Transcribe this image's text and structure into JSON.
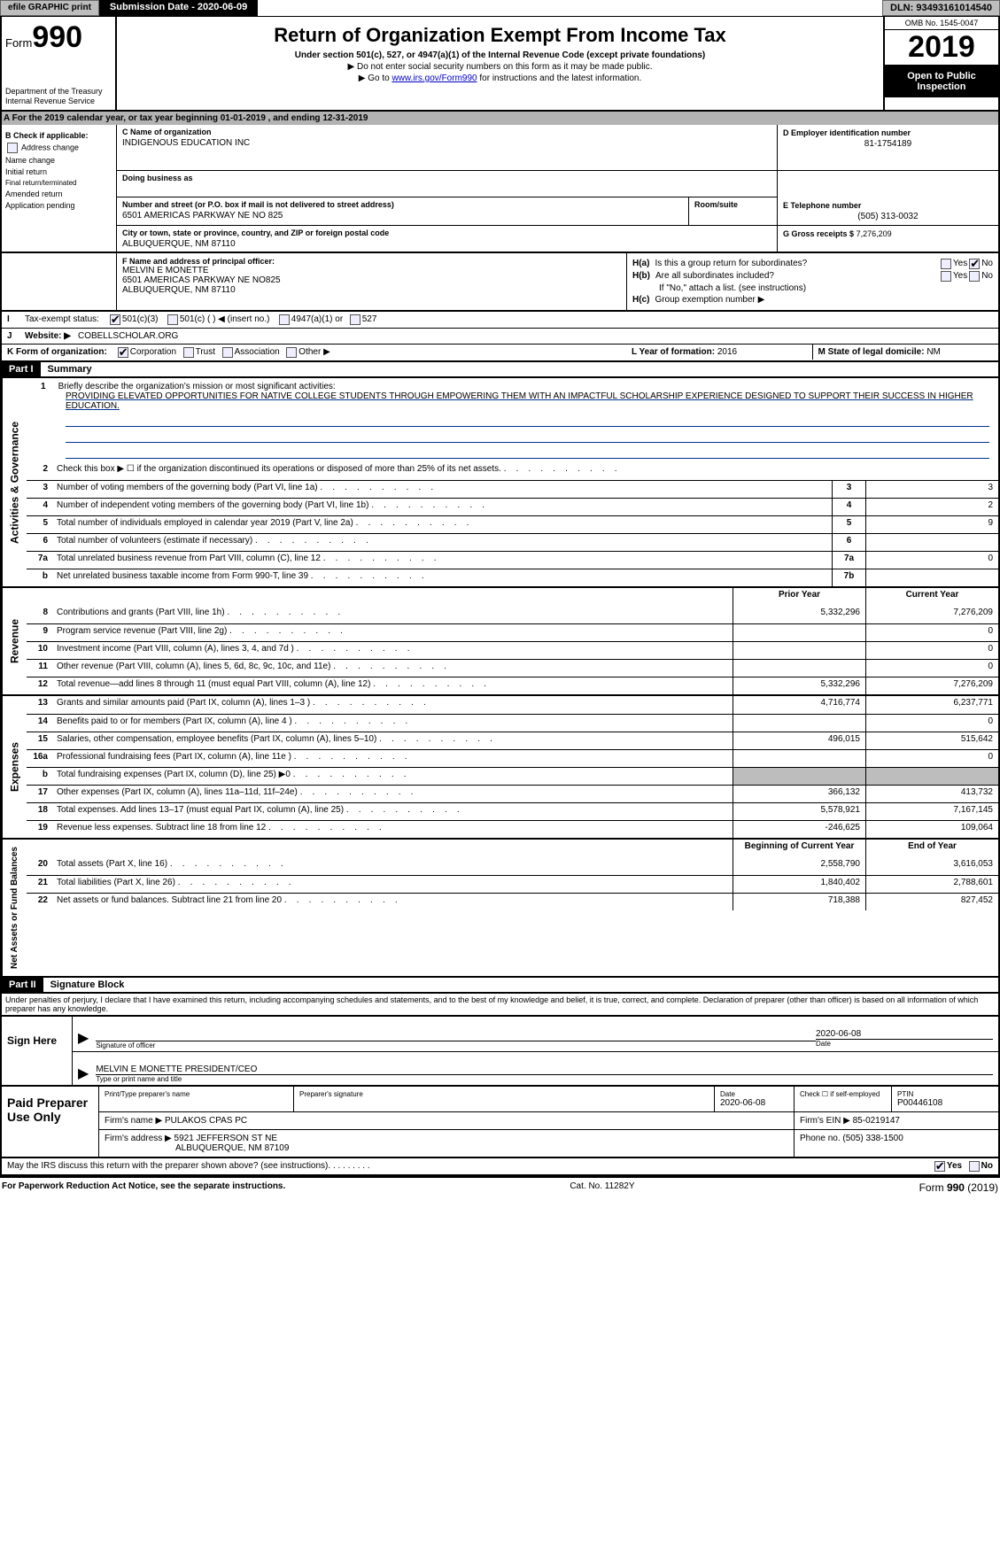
{
  "topbar": {
    "efile": "efile GRAPHIC print",
    "submission": "Submission Date - 2020-06-09",
    "dln": "DLN: 93493161014540"
  },
  "header": {
    "form_prefix": "Form",
    "form_number": "990",
    "department": "Department of the Treasury",
    "irs": "Internal Revenue Service",
    "title": "Return of Organization Exempt From Income Tax",
    "subtitle": "Under section 501(c), 527, or 4947(a)(1) of the Internal Revenue Code (except private foundations)",
    "note1": "▶ Do not enter social security numbers on this form as it may be made public.",
    "note2_pre": "▶ Go to ",
    "note2_link": "www.irs.gov/Form990",
    "note2_post": " for instructions and the latest information.",
    "omb": "OMB No. 1545-0047",
    "year": "2019",
    "otp": "Open to Public Inspection"
  },
  "row_a": "A   For the 2019 calendar year, or tax year beginning 01-01-2019       , and ending 12-31-2019",
  "block_b": {
    "title": "B Check if applicable:",
    "items": [
      "Address change",
      "Name change",
      "Initial return",
      "Final return/terminated",
      "Amended return",
      "Application pending"
    ]
  },
  "block_c": {
    "name_label": "C Name of organization",
    "name": "INDIGENOUS EDUCATION INC",
    "dba_label": "Doing business as",
    "dba": "",
    "street_label": "Number and street (or P.O. box if mail is not delivered to street address)",
    "street": "6501 AMERICAS PARKWAY NE NO 825",
    "room_label": "Room/suite",
    "room": "",
    "city_label": "City or town, state or province, country, and ZIP or foreign postal code",
    "city": "ALBUQUERQUE, NM  87110"
  },
  "block_d": {
    "label": "D Employer identification number",
    "value": "81-1754189"
  },
  "block_e": {
    "label": "E Telephone number",
    "value": "(505) 313-0032"
  },
  "block_g": {
    "label": "G Gross receipts $",
    "value": "7,276,209"
  },
  "block_f": {
    "label": "F  Name and address of principal officer:",
    "name": "MELVIN E MONETTE",
    "addr1": "6501 AMERICAS PARKWAY NE NO825",
    "addr2": "ALBUQUERQUE, NM  87110"
  },
  "block_h": {
    "a": "Is this a group return for subordinates?",
    "b": "Are all subordinates included?",
    "b_note": "If \"No,\" attach a list. (see instructions)",
    "c": "Group exemption number ▶"
  },
  "row_i": {
    "label": "Tax-exempt status:",
    "opts": [
      "501(c)(3)",
      "501(c) (  ) ◀ (insert no.)",
      "4947(a)(1) or",
      "527"
    ]
  },
  "row_j": {
    "label": "Website: ▶",
    "value": "COBELLSCHOLAR.ORG"
  },
  "row_k": {
    "label": "K Form of organization:",
    "opts": [
      "Corporation",
      "Trust",
      "Association",
      "Other ▶"
    ]
  },
  "row_l": {
    "label": "L Year of formation:",
    "value": "2016"
  },
  "row_m": {
    "label": "M State of legal domicile:",
    "value": "NM"
  },
  "part1": {
    "tag": "Part I",
    "title": "Summary"
  },
  "mission": {
    "num": "1",
    "label": "Briefly describe the organization's mission or most significant activities:",
    "text": "PROVIDING ELEVATED OPPORTUNITIES FOR NATIVE COLLEGE STUDENTS THROUGH EMPOWERING THEM WITH AN IMPACTFUL SCHOLARSHIP EXPERIENCE DESIGNED TO SUPPORT THEIR SUCCESS IN HIGHER EDUCATION."
  },
  "governance_rows": [
    {
      "n": "2",
      "desc": "Check this box ▶ ☐  if the organization discontinued its operations or disposed of more than 25% of its net assets."
    },
    {
      "n": "3",
      "desc": "Number of voting members of the governing body (Part VI, line 1a)",
      "box": "3",
      "val": "3"
    },
    {
      "n": "4",
      "desc": "Number of independent voting members of the governing body (Part VI, line 1b)",
      "box": "4",
      "val": "2"
    },
    {
      "n": "5",
      "desc": "Total number of individuals employed in calendar year 2019 (Part V, line 2a)",
      "box": "5",
      "val": "9"
    },
    {
      "n": "6",
      "desc": "Total number of volunteers (estimate if necessary)",
      "box": "6",
      "val": ""
    },
    {
      "n": "7a",
      "desc": "Total unrelated business revenue from Part VIII, column (C), line 12",
      "box": "7a",
      "val": "0"
    },
    {
      "n": "b",
      "desc": "Net unrelated business taxable income from Form 990-T, line 39",
      "box": "7b",
      "val": ""
    }
  ],
  "fin_headers": {
    "prior": "Prior Year",
    "current": "Current Year"
  },
  "revenue_rows": [
    {
      "n": "8",
      "desc": "Contributions and grants (Part VIII, line 1h)",
      "prior": "5,332,296",
      "current": "7,276,209"
    },
    {
      "n": "9",
      "desc": "Program service revenue (Part VIII, line 2g)",
      "prior": "",
      "current": "0"
    },
    {
      "n": "10",
      "desc": "Investment income (Part VIII, column (A), lines 3, 4, and 7d )",
      "prior": "",
      "current": "0"
    },
    {
      "n": "11",
      "desc": "Other revenue (Part VIII, column (A), lines 5, 6d, 8c, 9c, 10c, and 11e)",
      "prior": "",
      "current": "0"
    },
    {
      "n": "12",
      "desc": "Total revenue—add lines 8 through 11 (must equal Part VIII, column (A), line 12)",
      "prior": "5,332,296",
      "current": "7,276,209"
    }
  ],
  "expense_rows": [
    {
      "n": "13",
      "desc": "Grants and similar amounts paid (Part IX, column (A), lines 1–3 )",
      "prior": "4,716,774",
      "current": "6,237,771"
    },
    {
      "n": "14",
      "desc": "Benefits paid to or for members (Part IX, column (A), line 4 )",
      "prior": "",
      "current": "0"
    },
    {
      "n": "15",
      "desc": "Salaries, other compensation, employee benefits (Part IX, column (A), lines 5–10)",
      "prior": "496,015",
      "current": "515,642"
    },
    {
      "n": "16a",
      "desc": "Professional fundraising fees (Part IX, column (A), line 11e )",
      "prior": "",
      "current": "0"
    },
    {
      "n": "b",
      "desc": "Total fundraising expenses (Part IX, column (D), line 25) ▶0",
      "prior": "SHADE",
      "current": "SHADE"
    },
    {
      "n": "17",
      "desc": "Other expenses (Part IX, column (A), lines 11a–11d, 11f–24e)",
      "prior": "366,132",
      "current": "413,732"
    },
    {
      "n": "18",
      "desc": "Total expenses. Add lines 13–17 (must equal Part IX, column (A), line 25)",
      "prior": "5,578,921",
      "current": "7,167,145"
    },
    {
      "n": "19",
      "desc": "Revenue less expenses. Subtract line 18 from line 12",
      "prior": "-246,625",
      "current": "109,064"
    }
  ],
  "net_headers": {
    "prior": "Beginning of Current Year",
    "current": "End of Year"
  },
  "net_rows": [
    {
      "n": "20",
      "desc": "Total assets (Part X, line 16)",
      "prior": "2,558,790",
      "current": "3,616,053"
    },
    {
      "n": "21",
      "desc": "Total liabilities (Part X, line 26)",
      "prior": "1,840,402",
      "current": "2,788,601"
    },
    {
      "n": "22",
      "desc": "Net assets or fund balances. Subtract line 21 from line 20",
      "prior": "718,388",
      "current": "827,452"
    }
  ],
  "part2": {
    "tag": "Part II",
    "title": "Signature Block"
  },
  "penalties": "Under penalties of perjury, I declare that I have examined this return, including accompanying schedules and statements, and to the best of my knowledge and belief, it is true, correct, and complete. Declaration of preparer (other than officer) is based on all information of which preparer has any knowledge.",
  "sign": {
    "here": "Sign Here",
    "sig_label": "Signature of officer",
    "date": "2020-06-08",
    "date_label": "Date",
    "name": "MELVIN E MONETTE  PRESIDENT/CEO",
    "name_label": "Type or print name and title"
  },
  "preparer": {
    "title": "Paid Preparer Use Only",
    "pt_name_label": "Print/Type preparer's name",
    "pt_name": "",
    "pt_sig_label": "Preparer's signature",
    "pt_date_label": "Date",
    "pt_date": "2020-06-08",
    "check_label": "Check ☐ if self-employed",
    "ptin_label": "PTIN",
    "ptin": "P00446108",
    "firm_name_label": "Firm's name    ▶",
    "firm_name": "PULAKOS CPAS PC",
    "firm_ein_label": "Firm's EIN ▶",
    "firm_ein": "85-0219147",
    "firm_addr_label": "Firm's address ▶",
    "firm_addr1": "5921 JEFFERSON ST NE",
    "firm_addr2": "ALBUQUERQUE, NM  87109",
    "phone_label": "Phone no.",
    "phone": "(505) 338-1500"
  },
  "discuss": "May the IRS discuss this return with the preparer shown above? (see instructions)",
  "footer": {
    "left": "For Paperwork Reduction Act Notice, see the separate instructions.",
    "mid": "Cat. No. 11282Y",
    "right": "Form 990 (2019)"
  },
  "vlabels": {
    "gov": "Activities & Governance",
    "rev": "Revenue",
    "exp": "Expenses",
    "net": "Net Assets or Fund Balances"
  }
}
